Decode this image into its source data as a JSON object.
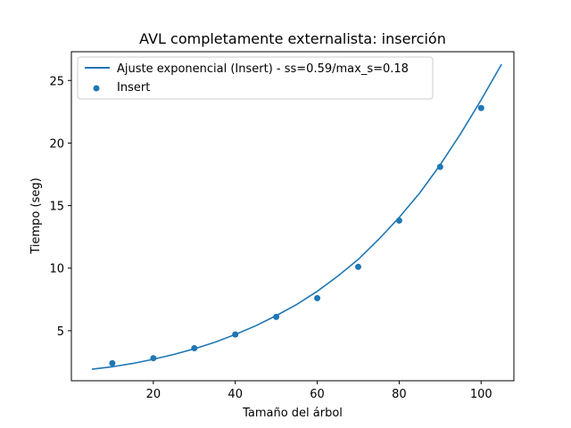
{
  "chart_data": {
    "type": "scatter",
    "title": "AVL completamente externalista: inserción",
    "xlabel": "Tamaño del árbol",
    "ylabel": "Tiempo (seg)",
    "xlim": [
      0,
      108
    ],
    "ylim": [
      1,
      27.3
    ],
    "x_ticks": [
      20,
      40,
      60,
      80,
      100
    ],
    "y_ticks": [
      5,
      10,
      15,
      20,
      25
    ],
    "grid": false,
    "legend_position": "top-left",
    "colors": {
      "series": "#1f77b4"
    },
    "series": [
      {
        "name": "Insert",
        "kind": "scatter",
        "x": [
          10,
          20,
          30,
          40,
          50,
          60,
          70,
          80,
          90,
          100
        ],
        "y": [
          2.4,
          2.8,
          3.6,
          4.7,
          6.1,
          7.6,
          10.1,
          13.8,
          18.1,
          22.8
        ]
      },
      {
        "name": "Ajuste exponencial (Insert) - ss=0.59/max_s=0.18",
        "kind": "line",
        "x": [
          5,
          10,
          15,
          20,
          25,
          30,
          35,
          40,
          45,
          50,
          55,
          60,
          65,
          70,
          75,
          80,
          85,
          90,
          95,
          100,
          105
        ],
        "y": [
          1.92,
          2.12,
          2.38,
          2.72,
          3.1,
          3.55,
          4.07,
          4.7,
          5.4,
          6.2,
          7.1,
          8.15,
          9.35,
          10.7,
          12.3,
          14.05,
          16.0,
          18.25,
          20.75,
          23.45,
          26.3
        ]
      }
    ]
  }
}
